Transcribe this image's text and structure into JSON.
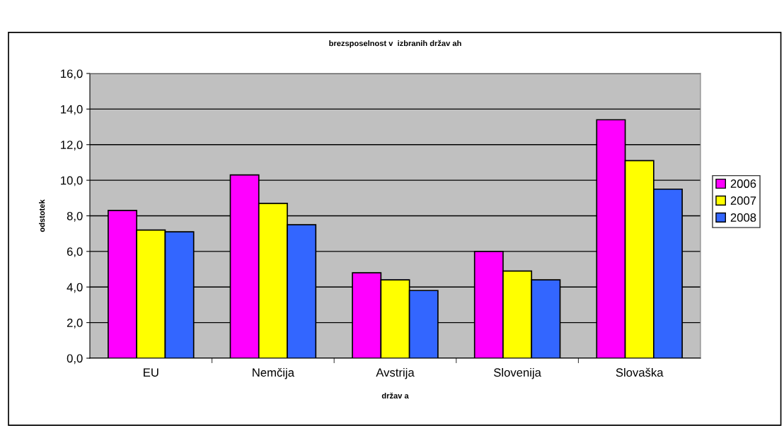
{
  "chart_data": {
    "type": "bar",
    "title": "brezsposelnost v  izbranih držav ah",
    "xlabel": "držav a",
    "ylabel": "odstotek",
    "categories": [
      "EU",
      "Nemčija",
      "Avstrija",
      "Slovenija",
      "Slovaška"
    ],
    "series": [
      {
        "name": "2006",
        "color": "#ff00ff",
        "values": [
          8.3,
          10.3,
          4.8,
          6.0,
          13.4
        ]
      },
      {
        "name": "2007",
        "color": "#ffff00",
        "values": [
          7.2,
          8.7,
          4.4,
          4.9,
          11.1
        ]
      },
      {
        "name": "2008",
        "color": "#3366ff",
        "values": [
          7.1,
          7.5,
          3.8,
          4.4,
          9.5
        ]
      }
    ],
    "ylim": [
      0,
      16
    ],
    "yticks": [
      {
        "value": 0,
        "label": "0,0"
      },
      {
        "value": 2,
        "label": "2,0"
      },
      {
        "value": 4,
        "label": "4,0"
      },
      {
        "value": 6,
        "label": "6,0"
      },
      {
        "value": 8,
        "label": "8,0"
      },
      {
        "value": 10,
        "label": "10,0"
      },
      {
        "value": 12,
        "label": "12,0"
      },
      {
        "value": 14,
        "label": "14,0"
      },
      {
        "value": 16,
        "label": "16,0"
      }
    ],
    "grid": "y",
    "legend": "right"
  }
}
